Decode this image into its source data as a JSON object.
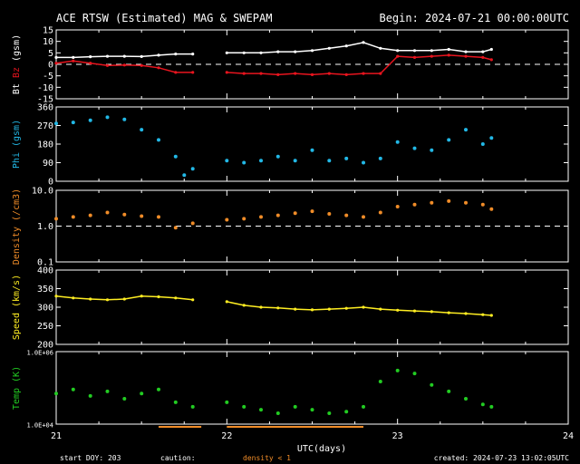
{
  "header": {
    "title": "ACE RTSW (Estimated) MAG & SWEPAM",
    "begin": "Begin: 2024-07-21 00:00:00UTC"
  },
  "footer": {
    "start_doy": "start DOY: 203",
    "caution": "caution:",
    "density_note": "density < 1",
    "created": "created: 2024-07-23 13:02:05UTC"
  },
  "colors": {
    "background": "#000000",
    "axes": "#ffffff",
    "bt": "#ffffff",
    "bz": "#e8141e",
    "phi": "#22b8e6",
    "density": "#f08c28",
    "speed": "#ffee22",
    "temp": "#22cc22",
    "caution": "#f08c28"
  },
  "chart_data": [
    {
      "type": "line",
      "panel": "mag",
      "ylabel_parts": [
        "Bt",
        "Bz",
        "(gsm)"
      ],
      "ylim": [
        -15,
        15
      ],
      "yticks": [
        "15",
        "10",
        "5",
        "0",
        "-5",
        "-10",
        "-15"
      ],
      "ytick_values": [
        15,
        10,
        5,
        0,
        -5,
        -10,
        -15
      ],
      "reference_line": 0,
      "x": [
        21.0,
        21.1,
        21.2,
        21.3,
        21.4,
        21.5,
        21.6,
        21.7,
        21.8,
        21.9,
        22.0,
        22.1,
        22.2,
        22.3,
        22.4,
        22.5,
        22.6,
        22.7,
        22.8,
        22.9,
        23.0,
        23.1,
        23.2,
        23.3,
        23.4,
        23.5,
        23.55
      ],
      "series": [
        {
          "name": "Bt",
          "values": [
            3.0,
            3.0,
            3.3,
            3.5,
            3.5,
            3.4,
            4.0,
            4.5,
            4.5,
            null,
            5.0,
            5.0,
            5.0,
            5.5,
            5.5,
            6.0,
            7.0,
            8.0,
            9.5,
            7.0,
            6.0,
            6.0,
            6.0,
            6.5,
            5.5,
            5.5,
            6.5
          ]
        },
        {
          "name": "Bz",
          "values": [
            0.5,
            1.5,
            0.5,
            -0.5,
            -0.3,
            -0.5,
            -1.5,
            -3.5,
            -3.5,
            null,
            -3.5,
            -4.0,
            -4.0,
            -4.5,
            -4.0,
            -4.5,
            -4.0,
            -4.5,
            -4.0,
            -4.0,
            3.5,
            3.0,
            3.5,
            4.0,
            3.5,
            3.0,
            2.0
          ]
        }
      ]
    },
    {
      "type": "scatter",
      "panel": "phi",
      "ylabel": "Phi (gsm)",
      "ylim": [
        0,
        360
      ],
      "yticks": [
        "360",
        "270",
        "180",
        "90",
        "0"
      ],
      "ytick_values": [
        360,
        270,
        180,
        90,
        0
      ],
      "x": [
        21.0,
        21.1,
        21.2,
        21.3,
        21.4,
        21.5,
        21.6,
        21.7,
        21.75,
        21.8,
        21.9,
        22.0,
        22.1,
        22.2,
        22.3,
        22.4,
        22.5,
        22.6,
        22.7,
        22.8,
        22.9,
        23.0,
        23.1,
        23.2,
        23.3,
        23.4,
        23.5,
        23.55
      ],
      "series": [
        {
          "name": "Phi",
          "values": [
            280,
            285,
            295,
            310,
            300,
            250,
            200,
            120,
            30,
            60,
            null,
            100,
            90,
            100,
            120,
            100,
            150,
            100,
            110,
            90,
            110,
            190,
            160,
            150,
            200,
            250,
            180,
            210
          ]
        }
      ]
    },
    {
      "type": "scatter",
      "panel": "density",
      "ylabel": "Density (/cm3)",
      "yscale": "log",
      "ylim": [
        0.1,
        10.0
      ],
      "yticks": [
        "10.0",
        "1.0",
        "0.1"
      ],
      "ytick_values": [
        10.0,
        1.0,
        0.1
      ],
      "reference_line": 1.0,
      "x": [
        21.0,
        21.1,
        21.2,
        21.3,
        21.4,
        21.5,
        21.6,
        21.7,
        21.8,
        21.9,
        22.0,
        22.1,
        22.2,
        22.3,
        22.4,
        22.5,
        22.6,
        22.7,
        22.8,
        22.9,
        23.0,
        23.1,
        23.2,
        23.3,
        23.4,
        23.5,
        23.55
      ],
      "series": [
        {
          "name": "Density",
          "values": [
            1.6,
            1.8,
            2.0,
            2.4,
            2.1,
            1.9,
            1.8,
            0.9,
            1.2,
            null,
            1.5,
            1.6,
            1.8,
            2.0,
            2.3,
            2.6,
            2.2,
            2.0,
            1.8,
            2.4,
            3.5,
            4.0,
            4.5,
            5.0,
            4.5,
            4.0,
            3.0
          ]
        }
      ]
    },
    {
      "type": "line",
      "panel": "speed",
      "ylabel": "Speed (km/s)",
      "ylim": [
        200,
        400
      ],
      "yticks": [
        "400",
        "350",
        "300",
        "250",
        "200"
      ],
      "ytick_values": [
        400,
        350,
        300,
        250,
        200
      ],
      "x": [
        21.0,
        21.1,
        21.2,
        21.3,
        21.4,
        21.5,
        21.6,
        21.7,
        21.8,
        21.9,
        22.0,
        22.1,
        22.2,
        22.3,
        22.4,
        22.5,
        22.6,
        22.7,
        22.8,
        22.9,
        23.0,
        23.1,
        23.2,
        23.3,
        23.4,
        23.5,
        23.55
      ],
      "series": [
        {
          "name": "Speed",
          "values": [
            330,
            325,
            322,
            320,
            322,
            330,
            328,
            325,
            320,
            null,
            315,
            305,
            300,
            298,
            295,
            293,
            295,
            297,
            300,
            295,
            292,
            290,
            288,
            285,
            283,
            280,
            278
          ]
        }
      ]
    },
    {
      "type": "scatter",
      "panel": "temp",
      "ylabel": "Temp (K)",
      "yscale": "log",
      "ylim": [
        10000,
        1000000
      ],
      "yticks": [
        "1.0E+06",
        "1.0E+04"
      ],
      "ytick_values": [
        1000000,
        10000
      ],
      "x": [
        21.0,
        21.1,
        21.2,
        21.3,
        21.4,
        21.5,
        21.6,
        21.7,
        21.8,
        21.9,
        22.0,
        22.1,
        22.2,
        22.3,
        22.4,
        22.5,
        22.6,
        22.7,
        22.8,
        22.9,
        23.0,
        23.1,
        23.2,
        23.3,
        23.4,
        23.5,
        23.55
      ],
      "series": [
        {
          "name": "Temp",
          "values": [
            70000,
            90000,
            60000,
            80000,
            50000,
            70000,
            90000,
            40000,
            30000,
            null,
            40000,
            30000,
            25000,
            20000,
            30000,
            25000,
            20000,
            22000,
            30000,
            150000,
            300000,
            250000,
            120000,
            80000,
            50000,
            35000,
            30000
          ]
        }
      ]
    },
    {
      "type": "axis",
      "panel": "time",
      "xlabel": "UTC(days)",
      "xlim": [
        21,
        24
      ],
      "xticks": [
        "21",
        "22",
        "23",
        "24"
      ],
      "xtick_values": [
        21,
        22,
        23,
        24
      ],
      "caution_intervals": [
        [
          21.6,
          21.85
        ],
        [
          22.0,
          22.8
        ]
      ]
    }
  ]
}
